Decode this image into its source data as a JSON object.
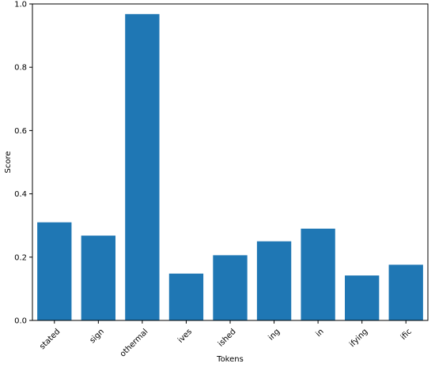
{
  "chart_data": {
    "type": "bar",
    "categories": [
      "stated",
      "sign",
      "othermal",
      "ives",
      "ished",
      "ing",
      "in",
      "ifying",
      "ific"
    ],
    "values": [
      0.31,
      0.268,
      0.968,
      0.148,
      0.206,
      0.25,
      0.29,
      0.142,
      0.176
    ],
    "xlabel": "Tokens",
    "ylabel": "Score",
    "ylim": [
      0,
      1.0
    ],
    "yticks": [
      0.0,
      0.2,
      0.4,
      0.6,
      0.8,
      1.0
    ],
    "ytick_labels": [
      "0.0",
      "0.2",
      "0.4",
      "0.6",
      "0.8",
      "1.0"
    ],
    "bar_color": "#1f77b4",
    "grid": false,
    "legend": "none"
  }
}
